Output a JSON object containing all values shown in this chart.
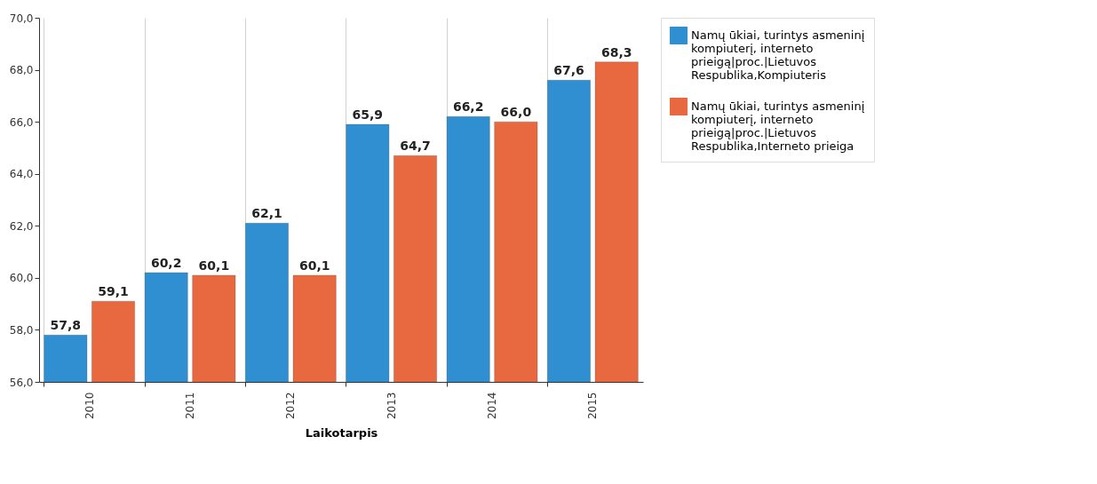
{
  "chart_data": {
    "type": "bar",
    "xlabel": "Laikotarpis",
    "categories": [
      "2010",
      "2011",
      "2012",
      "2013",
      "2014",
      "2015"
    ],
    "series": [
      {
        "name": "Namų ūkiai, turintys asmeninį kompiuterį, interneto prieigą|proc.|Lietuvos Respublika,Kompiuteris",
        "color": "#2f8fd0",
        "values": [
          57.8,
          60.2,
          62.1,
          65.9,
          66.2,
          67.6
        ],
        "value_labels": [
          "57,8",
          "60,2",
          "62,1",
          "65,9",
          "66,2",
          "67,6"
        ]
      },
      {
        "name": "Namų ūkiai, turintys asmeninį kompiuterį, interneto prieigą|proc.|Lietuvos Respublika,Interneto prieiga",
        "color": "#e8683f",
        "values": [
          59.1,
          60.1,
          60.1,
          64.7,
          66.0,
          68.3
        ],
        "value_labels": [
          "59,1",
          "60,1",
          "60,1",
          "64,7",
          "66,0",
          "68,3"
        ]
      }
    ],
    "ylim": [
      56,
      70
    ],
    "yticks": [
      {
        "value": 56,
        "label": "56,0"
      },
      {
        "value": 58,
        "label": "58,0"
      },
      {
        "value": 60,
        "label": "60,0"
      },
      {
        "value": 62,
        "label": "62,0"
      },
      {
        "value": 64,
        "label": "64,0"
      },
      {
        "value": 66,
        "label": "66,0"
      },
      {
        "value": 68,
        "label": "68,0"
      },
      {
        "value": 70,
        "label": "70,0"
      }
    ],
    "grid": "x",
    "legend": "top right"
  }
}
